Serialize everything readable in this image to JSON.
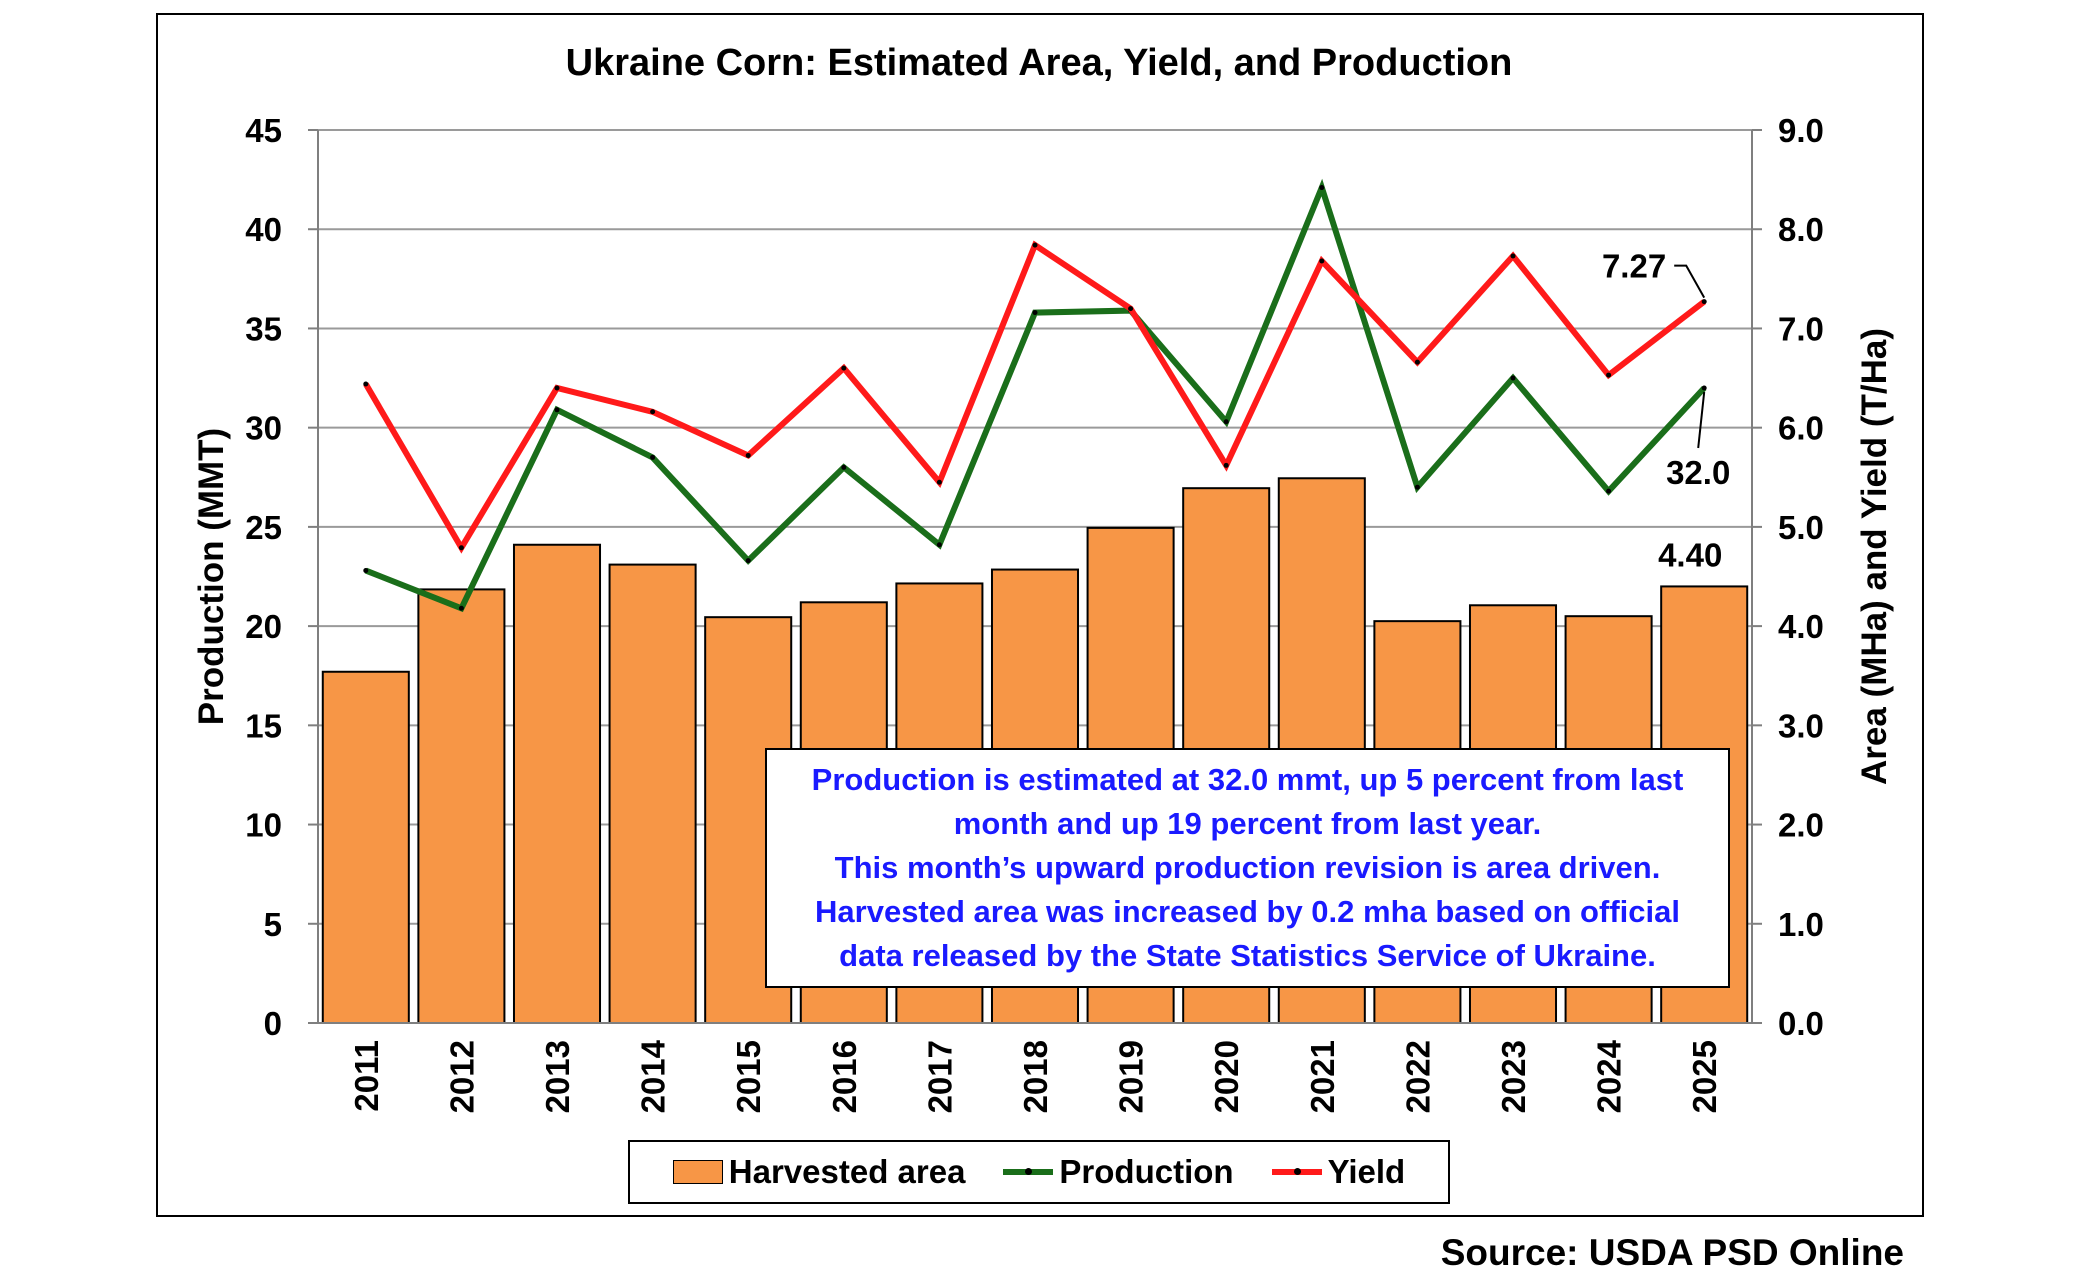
{
  "chart_data": {
    "type": "bar",
    "title": "Ukraine Corn: Estimated Area, Yield, and Production",
    "categories": [
      "2011",
      "2012",
      "2013",
      "2014",
      "2015",
      "2016",
      "2017",
      "2018",
      "2019",
      "2020",
      "2021",
      "2022",
      "2023",
      "2024",
      "2025"
    ],
    "series": [
      {
        "name": "Harvested area",
        "type": "bar",
        "axis": "right",
        "values": [
          3.54,
          4.37,
          4.82,
          4.62,
          4.09,
          4.24,
          4.43,
          4.57,
          4.99,
          5.39,
          5.49,
          4.05,
          4.21,
          4.1,
          4.4
        ]
      },
      {
        "name": "Production",
        "type": "line",
        "axis": "left",
        "values": [
          22.8,
          20.9,
          30.9,
          28.5,
          23.3,
          28.0,
          24.1,
          35.8,
          35.9,
          30.3,
          42.1,
          27.0,
          32.5,
          26.8,
          32.0
        ]
      },
      {
        "name": "Yield",
        "type": "line",
        "axis": "right",
        "values": [
          6.44,
          4.79,
          6.4,
          6.16,
          5.72,
          6.6,
          5.45,
          7.84,
          7.2,
          5.62,
          7.68,
          6.66,
          7.73,
          6.53,
          7.27
        ]
      }
    ],
    "ylabel": "Production (MMT)",
    "ylabel_right": "Area (MHa) and Yield (T/Ha)",
    "ylim": [
      0,
      45
    ],
    "ylim_right": [
      0,
      9
    ],
    "yticks": [
      "0",
      "5",
      "10",
      "15",
      "20",
      "25",
      "30",
      "35",
      "40",
      "45"
    ],
    "yticks_right": [
      "0.0",
      "1.0",
      "2.0",
      "3.0",
      "4.0",
      "5.0",
      "6.0",
      "7.0",
      "8.0",
      "9.0"
    ],
    "grid": true,
    "legend_position": "bottom",
    "data_labels": {
      "yield_last": "7.27",
      "production_last": "32.0",
      "area_last": "4.40"
    },
    "colors": {
      "bar": "#f79646",
      "production": "#1a6e1a",
      "yield": "#ff1a1a"
    }
  },
  "annotation": {
    "lines": [
      "Production is estimated at 32.0 mmt, up 5 percent from last",
      "month and up 19 percent from last year.",
      "This month’s upward production revision is area driven.",
      "Harvested area was increased by 0.2 mha based on official",
      "data released by the State Statistics Service of Ukraine."
    ]
  },
  "legend": {
    "area_label": "Harvested area",
    "production_label": "Production",
    "yield_label": "Yield"
  },
  "source": "Source: USDA PSD Online"
}
